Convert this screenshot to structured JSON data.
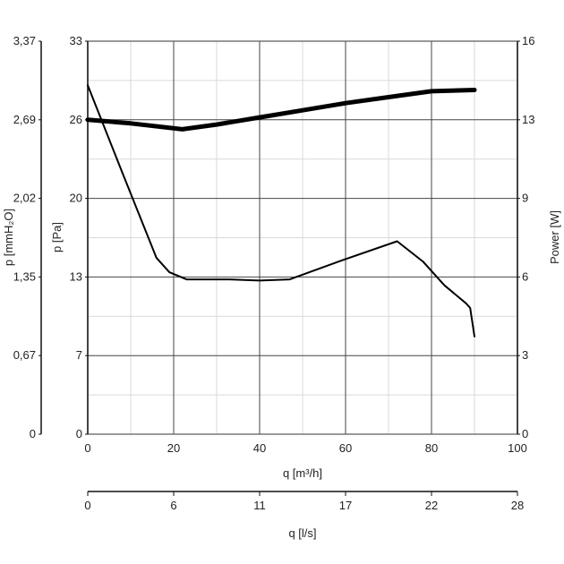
{
  "chart_data": {
    "type": "line",
    "x_axis": {
      "label": "q [m³/h]",
      "ticks": [
        "0",
        "20",
        "40",
        "60",
        "80",
        "100"
      ],
      "range": [
        0,
        100
      ]
    },
    "x2_axis": {
      "label": "q [l/s]",
      "ticks": [
        "0",
        "6",
        "11",
        "17",
        "22",
        "28"
      ]
    },
    "y_left_outer": {
      "label": "p [mmH₂O]",
      "ticks": [
        "0",
        "0,67",
        "1,35",
        "2,02",
        "2,69",
        "3,37"
      ]
    },
    "y_left": {
      "label": "p [Pa]",
      "ticks": [
        "0",
        "7",
        "13",
        "20",
        "26",
        "33"
      ],
      "range": [
        0,
        33
      ]
    },
    "y_right": {
      "label": "Power [W]",
      "ticks": [
        "0",
        "3",
        "6",
        "9",
        "13",
        "16"
      ]
    },
    "series": [
      {
        "axis": "left",
        "style": "thin",
        "points": [
          [
            0,
            29.3
          ],
          [
            8,
            22
          ],
          [
            16,
            14.8
          ],
          [
            19,
            13.6
          ],
          [
            23,
            13.0
          ],
          [
            33,
            13.0
          ],
          [
            40,
            12.9
          ],
          [
            47,
            13.0
          ],
          [
            60,
            14.7
          ],
          [
            72,
            16.2
          ],
          [
            78,
            14.5
          ],
          [
            83,
            12.5
          ],
          [
            88,
            11.0
          ],
          [
            89,
            10.6
          ],
          [
            90,
            8.2
          ]
        ]
      },
      {
        "axis": "left",
        "style": "thick",
        "points": [
          [
            0,
            26.4
          ],
          [
            10,
            26.1
          ],
          [
            22,
            25.6
          ],
          [
            30,
            26.0
          ],
          [
            40,
            26.6
          ],
          [
            50,
            27.2
          ],
          [
            60,
            27.8
          ],
          [
            70,
            28.3
          ],
          [
            80,
            28.8
          ],
          [
            90,
            28.9
          ]
        ]
      }
    ]
  }
}
